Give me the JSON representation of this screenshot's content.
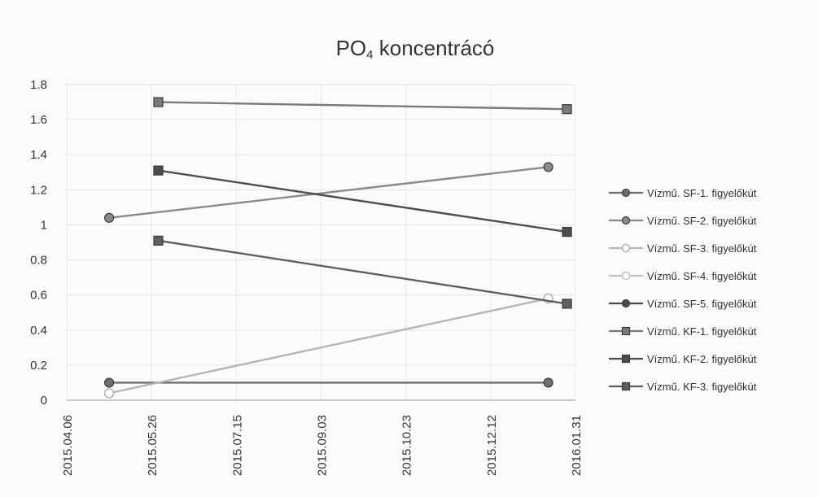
{
  "chart_data": {
    "type": "line",
    "title_main": "PO",
    "title_sub": "4",
    "title_rest": " koncentrácó",
    "xlabel": "",
    "ylabel": "",
    "y_ticks": [
      "0",
      "0.2",
      "0.4",
      "0.6",
      "0.8",
      "1",
      "1.2",
      "1.4",
      "1.6",
      "1.8"
    ],
    "y_tick_values": [
      0,
      0.2,
      0.4,
      0.6,
      0.8,
      1.0,
      1.2,
      1.4,
      1.6,
      1.8
    ],
    "ylim": [
      0,
      1.8
    ],
    "x_ticks": [
      "2015.04.06",
      "2015.05.26",
      "2015.07.15",
      "2015.09.03",
      "2015.10.23",
      "2015.12.12",
      "2016.01.31"
    ],
    "xlim": [
      "2015.04.06",
      "2016.01.31"
    ],
    "grid": true,
    "legend_position": "right",
    "series": [
      {
        "name": "Vízmű. SF-1. figyelőkút",
        "marker": "circle",
        "color": "#6f6f6f",
        "x": [
          "2015.05.01",
          "2016.01.15"
        ],
        "y": [
          0.1,
          0.1
        ]
      },
      {
        "name": "Vízmű. SF-2. figyelőkút",
        "marker": "circle",
        "color": "#8a8a8a",
        "x": [
          "2015.05.01",
          "2016.01.15"
        ],
        "y": [
          1.04,
          1.33
        ]
      },
      {
        "name": "Vízmű. SF-3. figyelőkút",
        "marker": "circle-open",
        "color": "#b5b5b5",
        "x": [
          "2015.05.01",
          "2016.01.15"
        ],
        "y": [
          0.04,
          0.58
        ]
      },
      {
        "name": "Vízmű. SF-4. figyelőkút",
        "marker": "circle-open",
        "color": "#c2c2c2",
        "x": [],
        "y": []
      },
      {
        "name": "Vízmű. SF-5. figyelőkút",
        "marker": "circle",
        "color": "#4a4a4a",
        "x": [],
        "y": []
      },
      {
        "name": "Vízmű. KF-1. figyelőkút",
        "marker": "square",
        "color": "#7a7a7a",
        "x": [
          "2015.05.30",
          "2016.01.26"
        ],
        "y": [
          1.7,
          1.66
        ]
      },
      {
        "name": "Vízmű. KF-2. figyelőkút",
        "marker": "square",
        "color": "#4d4d4d",
        "x": [
          "2015.05.30",
          "2016.01.26"
        ],
        "y": [
          1.31,
          0.96
        ]
      },
      {
        "name": "Vízmű. KF-3. figyelőkút",
        "marker": "square",
        "color": "#5e5e5e",
        "x": [
          "2015.05.30",
          "2016.01.26"
        ],
        "y": [
          0.91,
          0.55
        ]
      }
    ]
  }
}
